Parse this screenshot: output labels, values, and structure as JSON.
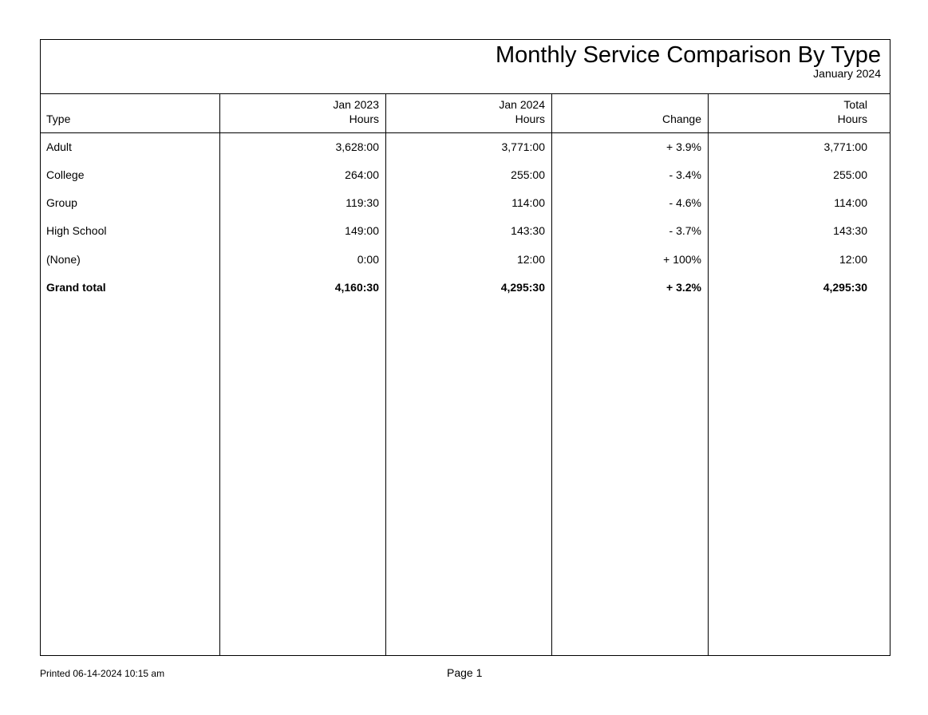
{
  "report": {
    "title": "Monthly Service Comparison By Type",
    "subtitle": "January 2024"
  },
  "columns": {
    "type": "Type",
    "jan2023_line1": "Jan 2023",
    "jan2023_line2": "Hours",
    "jan2024_line1": "Jan 2024",
    "jan2024_line2": "Hours",
    "change": "Change",
    "total_line1": "Total",
    "total_line2": "Hours"
  },
  "rows": [
    {
      "type": "Adult",
      "jan2023": "3,628:00",
      "jan2024": "3,771:00",
      "change": "+ 3.9%",
      "total": "3,771:00"
    },
    {
      "type": "College",
      "jan2023": "264:00",
      "jan2024": "255:00",
      "change": "- 3.4%",
      "total": "255:00"
    },
    {
      "type": "Group",
      "jan2023": "119:30",
      "jan2024": "114:00",
      "change": "- 4.6%",
      "total": "114:00"
    },
    {
      "type": "High School",
      "jan2023": "149:00",
      "jan2024": "143:30",
      "change": "- 3.7%",
      "total": "143:30"
    },
    {
      "type": "(None)",
      "jan2023": "0:00",
      "jan2024": "12:00",
      "change": "+ 100%",
      "total": "12:00"
    }
  ],
  "grand_total": {
    "type": "Grand total",
    "jan2023": "4,160:30",
    "jan2024": "4,295:30",
    "change": "+ 3.2%",
    "total": "4,295:30"
  },
  "footer": {
    "printed": "Printed 06-14-2024 10:15 am",
    "page": "Page 1"
  }
}
